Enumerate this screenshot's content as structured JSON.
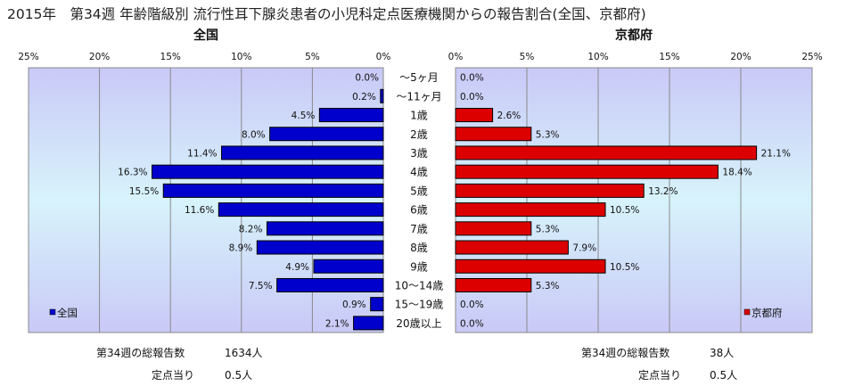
{
  "page_title": "2015年　第34週 年齢階級別 流行性耳下腺炎患者の小児科定点医療機関からの報告割合(全国、京都府)",
  "left_footer": {
    "total_label": "第34週の総報告数",
    "total_value": "1634人",
    "per_site_label": "定点当り",
    "per_site_value": "0.5人"
  },
  "right_footer": {
    "total_label": "第34週の総報告数",
    "total_value": "38人",
    "per_site_label": "定点当り",
    "per_site_value": "0.5人"
  },
  "chart_data": [
    {
      "type": "bar",
      "orientation": "horizontal",
      "direction": "right-to-left",
      "title": "全国",
      "categories": [
        "～5ヶ月",
        "～11ヶ月",
        "1歳",
        "2歳",
        "3歳",
        "4歳",
        "5歳",
        "6歳",
        "7歳",
        "8歳",
        "9歳",
        "10～14歳",
        "15～19歳",
        "20歳以上"
      ],
      "series": [
        {
          "name": "全国",
          "values": [
            0.0,
            0.2,
            4.5,
            8.0,
            11.4,
            16.3,
            15.5,
            11.6,
            8.2,
            8.9,
            4.9,
            7.5,
            0.9,
            2.1
          ],
          "color": "#0000cc"
        }
      ],
      "data_labels": [
        "0.0%",
        "0.2%",
        "4.5%",
        "8.0%",
        "11.4%",
        "16.3%",
        "15.5%",
        "11.6%",
        "8.2%",
        "8.9%",
        "4.9%",
        "7.5%",
        "0.9%",
        "2.1%"
      ],
      "xlim": [
        0,
        25
      ],
      "x_ticks": [
        "0%",
        "5%",
        "10%",
        "15%",
        "20%",
        "25%"
      ],
      "legend": "bottom-left",
      "grid": true
    },
    {
      "type": "bar",
      "orientation": "horizontal",
      "direction": "left-to-right",
      "title": "京都府",
      "categories": [
        "～5ヶ月",
        "～11ヶ月",
        "1歳",
        "2歳",
        "3歳",
        "4歳",
        "5歳",
        "6歳",
        "7歳",
        "8歳",
        "9歳",
        "10～14歳",
        "15～19歳",
        "20歳以上"
      ],
      "series": [
        {
          "name": "京都府",
          "values": [
            0.0,
            0.0,
            2.6,
            5.3,
            21.1,
            18.4,
            13.2,
            10.5,
            5.3,
            7.9,
            10.5,
            5.3,
            0.0,
            0.0
          ],
          "color": "#dd0000"
        }
      ],
      "data_labels": [
        "0.0%",
        "0.0%",
        "2.6%",
        "5.3%",
        "21.1%",
        "18.4%",
        "13.2%",
        "10.5%",
        "5.3%",
        "7.9%",
        "10.5%",
        "5.3%",
        "0.0%",
        "0.0%"
      ],
      "xlim": [
        0,
        25
      ],
      "x_ticks": [
        "0%",
        "5%",
        "10%",
        "15%",
        "20%",
        "25%"
      ],
      "legend": "bottom-right",
      "grid": true
    }
  ]
}
